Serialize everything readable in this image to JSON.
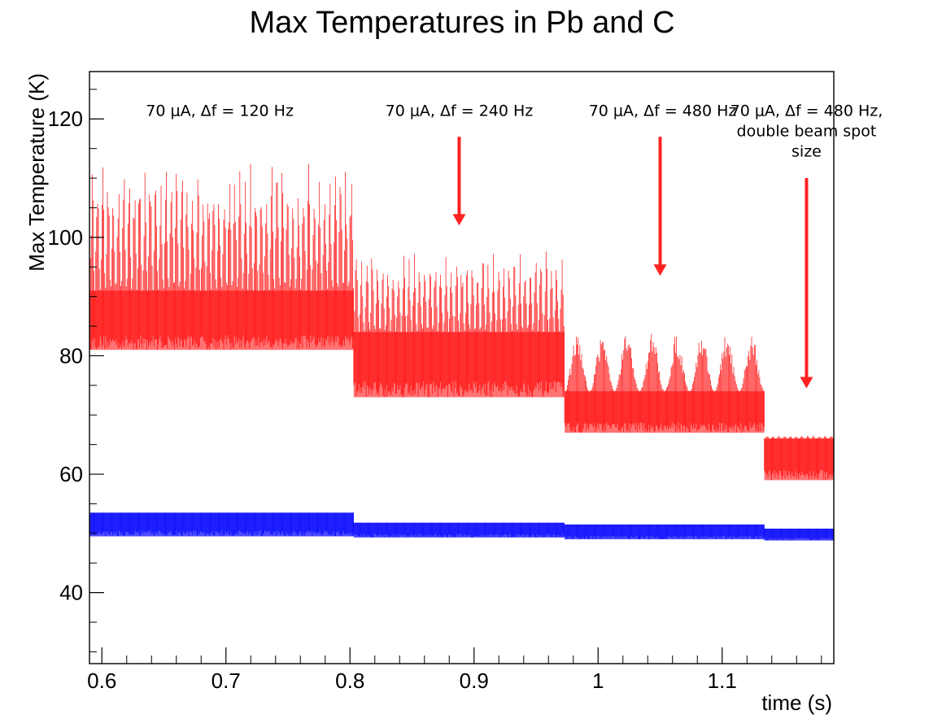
{
  "chart_data": {
    "type": "scatter",
    "title": "Max Temperatures in Pb and C",
    "xlabel": "time (s)",
    "ylabel": "Max Temperature (K)",
    "xlim": [
      0.59,
      1.19
    ],
    "ylim": [
      28,
      128
    ],
    "xticks": [
      {
        "value": 0.6,
        "label": "0.6"
      },
      {
        "value": 0.7,
        "label": "0.7"
      },
      {
        "value": 0.8,
        "label": "0.8"
      },
      {
        "value": 0.9,
        "label": "0.9"
      },
      {
        "value": 1.0,
        "label": "1"
      },
      {
        "value": 1.1,
        "label": "1.1"
      }
    ],
    "yticks": [
      {
        "value": 40,
        "label": "40"
      },
      {
        "value": 60,
        "label": "60"
      },
      {
        "value": 80,
        "label": "80"
      },
      {
        "value": 100,
        "label": "100"
      },
      {
        "value": 120,
        "label": "120"
      }
    ],
    "grid": false,
    "legend": "none",
    "series": [
      {
        "color": "#ff0000",
        "segments": [
          {
            "x_start": 0.59,
            "x_end": 0.803,
            "base_min": 81,
            "base_max": 91,
            "peak": 113,
            "oscillations": 50
          },
          {
            "x_start": 0.803,
            "x_end": 0.973,
            "base_min": 73,
            "base_max": 84,
            "peak": 98,
            "oscillations": 40
          },
          {
            "x_start": 0.973,
            "x_end": 1.134,
            "base_min": 67,
            "base_max": 74,
            "peak": 84,
            "oscillations": 8
          },
          {
            "x_start": 1.134,
            "x_end": 1.19,
            "base_min": 59,
            "base_max": 66,
            "peak": 66.5,
            "oscillations": 12
          }
        ]
      },
      {
        "color": "#0000ff",
        "segments": [
          {
            "x_start": 0.59,
            "x_end": 0.803,
            "base_min": 49.5,
            "base_max": 53.5,
            "peak": 53.5,
            "oscillations": 60
          },
          {
            "x_start": 0.803,
            "x_end": 0.973,
            "base_min": 49.3,
            "base_max": 51.8,
            "peak": 51.8,
            "oscillations": 60
          },
          {
            "x_start": 0.973,
            "x_end": 1.134,
            "base_min": 49,
            "base_max": 51.5,
            "peak": 51.5,
            "oscillations": 60
          },
          {
            "x_start": 1.134,
            "x_end": 1.19,
            "base_min": 48.8,
            "base_max": 50.8,
            "peak": 50.8,
            "oscillations": 30
          }
        ]
      }
    ],
    "annotations": [
      {
        "lines": [
          "70 μA, Δf = 120 Hz"
        ],
        "x": 0.695,
        "y": 120.5,
        "anchor": "middle"
      },
      {
        "lines": [
          "70 μA, Δf = 240 Hz"
        ],
        "x": 0.888,
        "y": 120.5,
        "anchor": "middle"
      },
      {
        "lines": [
          "70 μA, Δf = 480 Hz"
        ],
        "x": 1.052,
        "y": 120.5,
        "anchor": "middle"
      },
      {
        "lines": [
          "70 μA, Δf = 480 Hz,",
          "double beam spot",
          "size"
        ],
        "x": 1.168,
        "y": 120.5,
        "anchor": "middle"
      }
    ],
    "arrows": [
      {
        "x": 0.888,
        "y_from": 117,
        "y_to": 102,
        "color": "#ff2222"
      },
      {
        "x": 1.05,
        "y_from": 117,
        "y_to": 93.5,
        "color": "#ff2222"
      },
      {
        "x": 1.168,
        "y_from": 110,
        "y_to": 74.5,
        "color": "#ff2222"
      }
    ]
  }
}
